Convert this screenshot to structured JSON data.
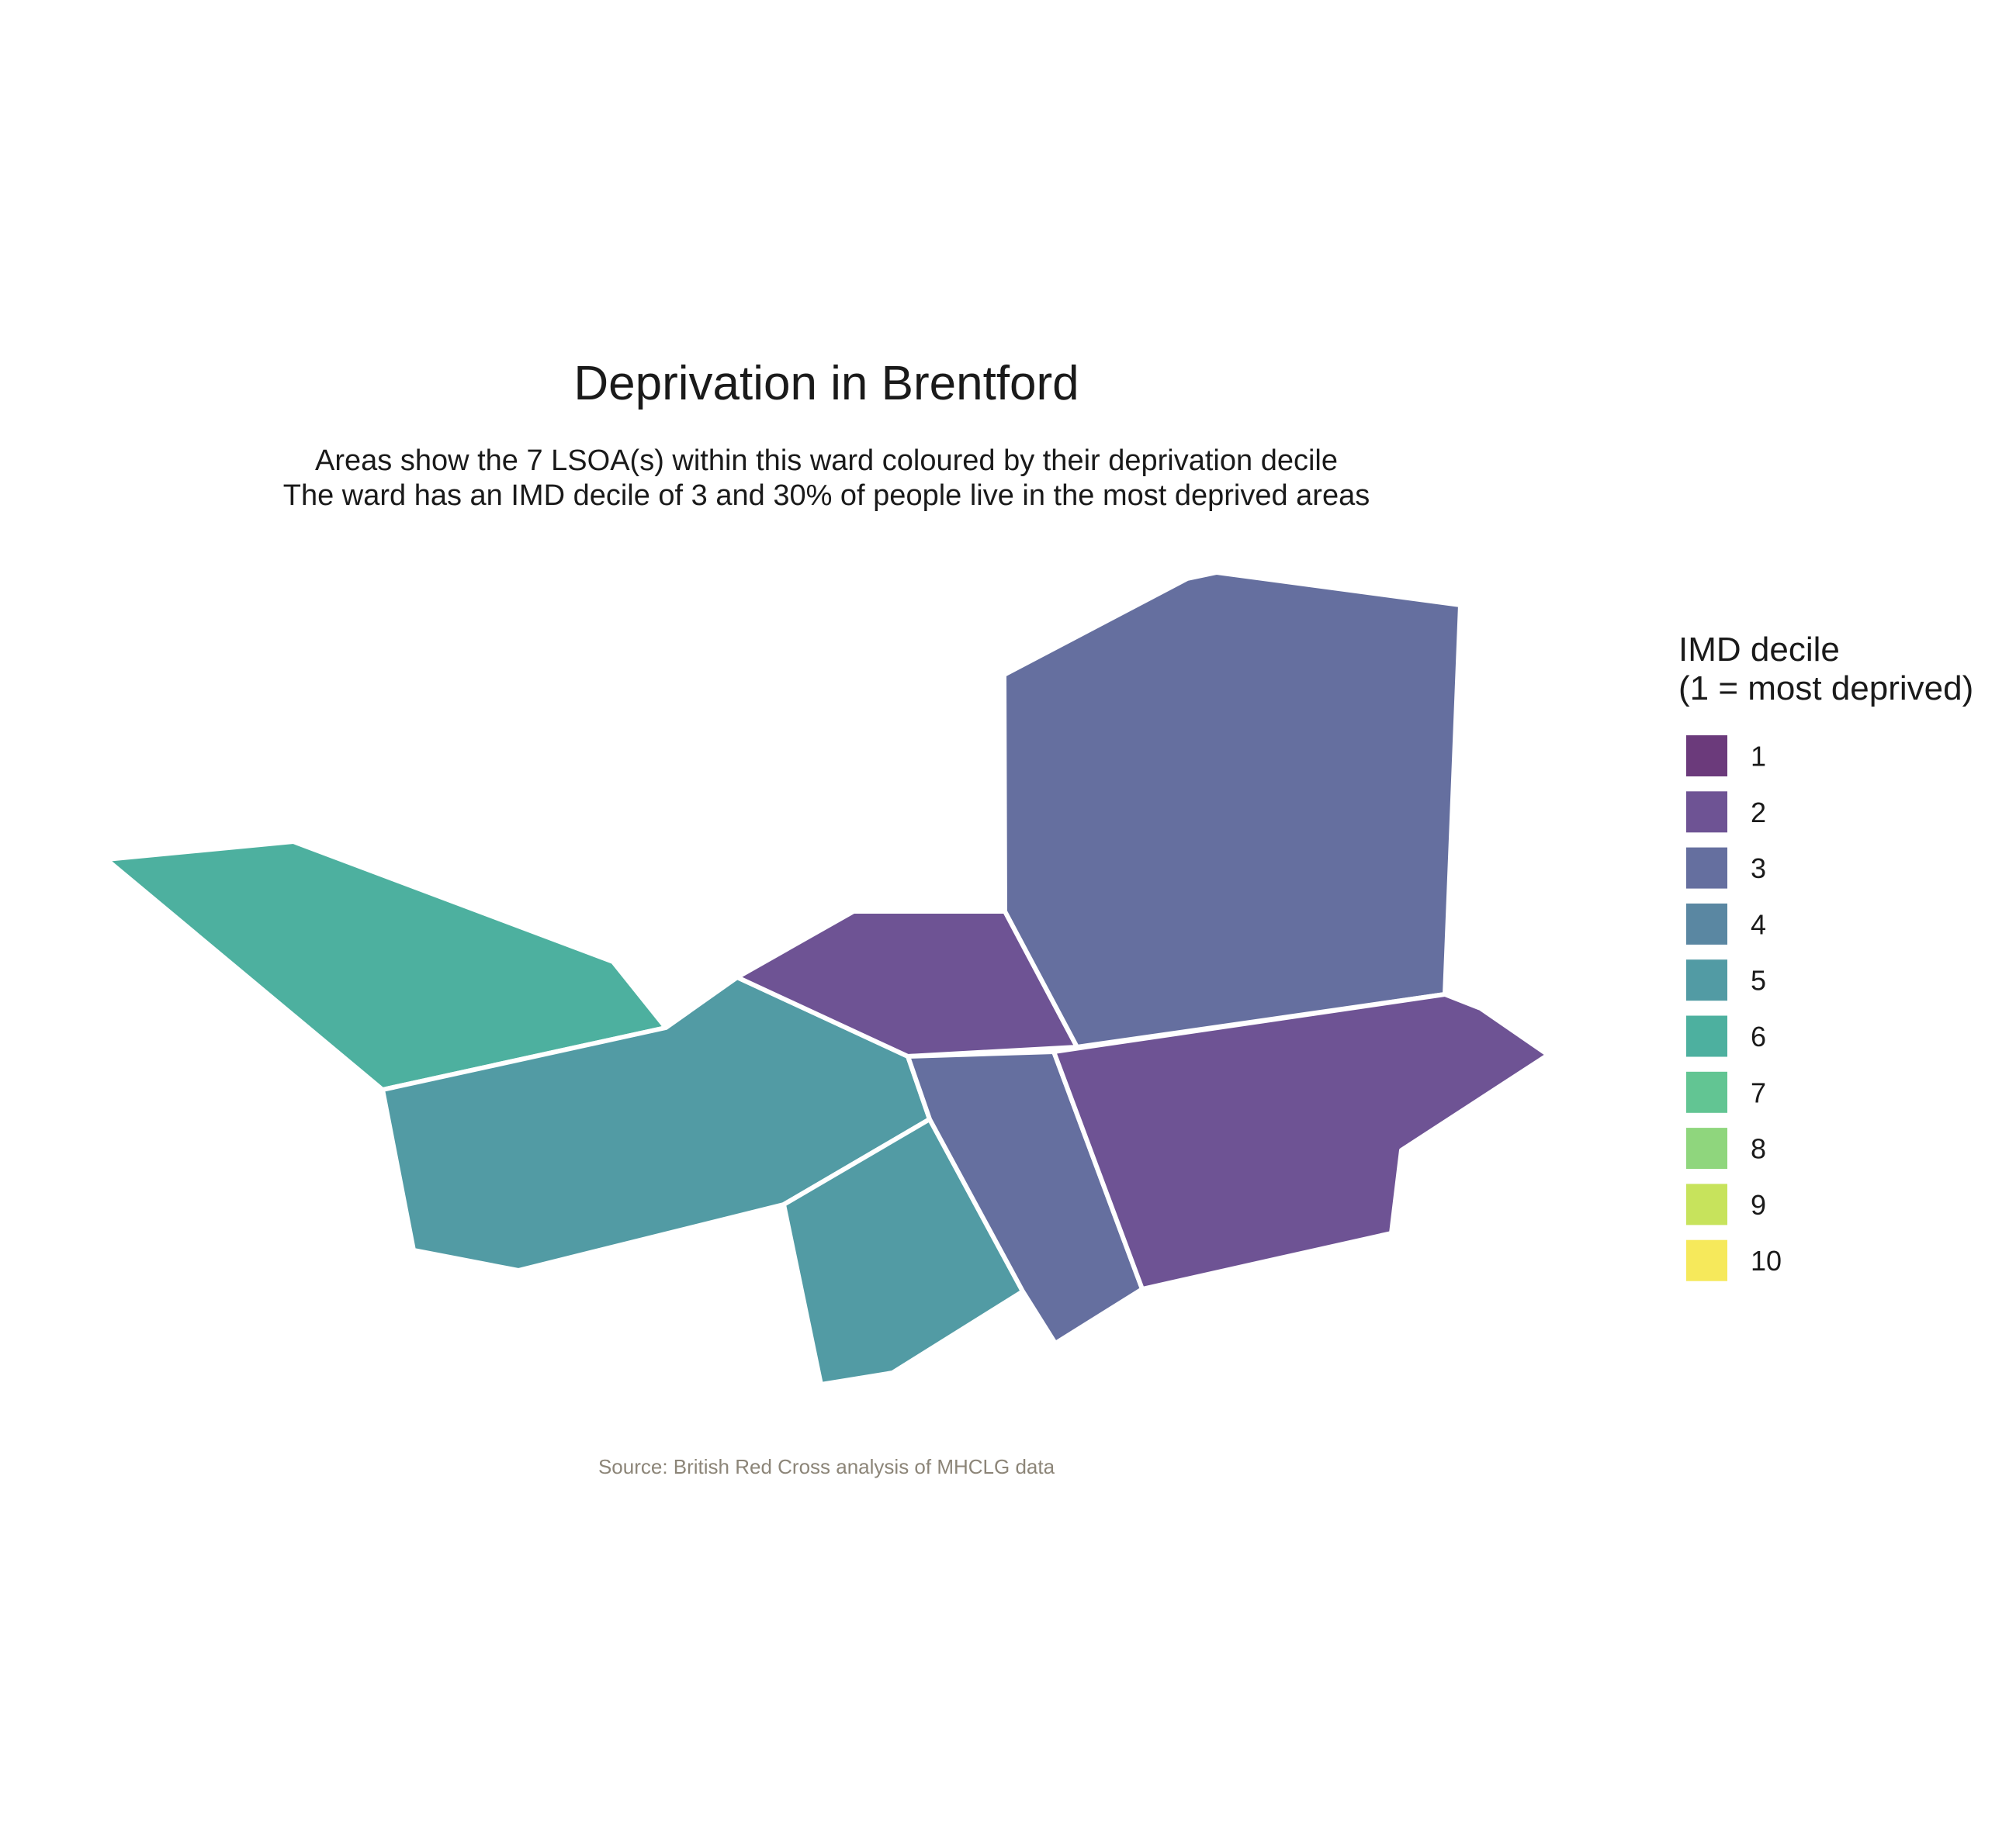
{
  "chart_data": {
    "type": "choropleth",
    "title": "Deprivation in Brentford",
    "subtitle": [
      "Areas show the 7 LSOA(s) within this ward coloured by their deprivation decile",
      "The ward has an IMD decile of 3 and 30% of people live in the most deprived areas"
    ],
    "caption": "Source: British Red Cross analysis of MHCLG data",
    "ward": "Brentford",
    "lsoa_count": 7,
    "ward_imd_decile": 3,
    "pct_most_deprived": 30,
    "areas": [
      {
        "decile": 6
      },
      {
        "decile": 5
      },
      {
        "decile": 2
      },
      {
        "decile": 3
      },
      {
        "decile": 5
      },
      {
        "decile": 3
      },
      {
        "decile": 2
      }
    ],
    "legend": {
      "title": [
        "IMD decile",
        "(1 = most deprived)"
      ],
      "placement": "right",
      "items": [
        {
          "label": "1",
          "color": "#6b3a7b"
        },
        {
          "label": "2",
          "color": "#6e5394"
        },
        {
          "label": "3",
          "color": "#656f9f"
        },
        {
          "label": "4",
          "color": "#5a87a2"
        },
        {
          "label": "5",
          "color": "#529ba4"
        },
        {
          "label": "6",
          "color": "#4db09f"
        },
        {
          "label": "7",
          "color": "#62c593"
        },
        {
          "label": "8",
          "color": "#8fd67d"
        },
        {
          "label": "9",
          "color": "#c7e35c"
        },
        {
          "label": "10",
          "color": "#f6e95b"
        }
      ]
    }
  }
}
